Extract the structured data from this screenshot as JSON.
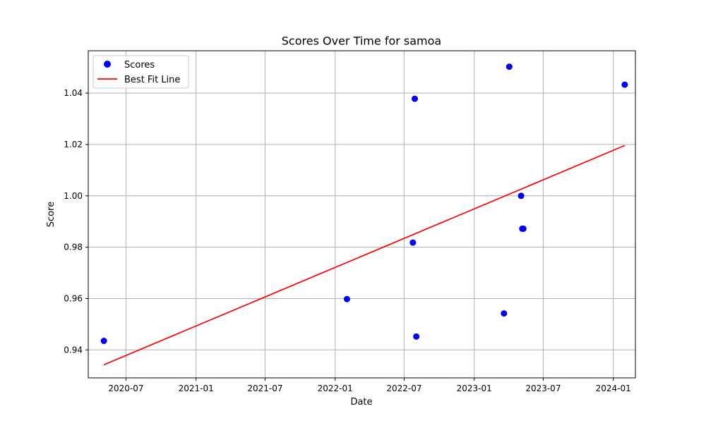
{
  "colors": {
    "scores": "#0000ff",
    "fit_line": "#ff0000",
    "grid": "#b0b0b0",
    "axis": "#000000",
    "background": "#ffffff"
  },
  "chart_data": {
    "type": "scatter",
    "title": "Scores Over Time for samoa",
    "xlabel": "Date",
    "ylabel": "Score",
    "grid": true,
    "legend_position": "top-left",
    "xlim": [
      "2020-03-24",
      "2024-02-28"
    ],
    "ylim": [
      0.9291,
      1.0565
    ],
    "x_ticks": [
      "2020-07-01",
      "2021-01-01",
      "2021-07-01",
      "2022-01-01",
      "2022-07-01",
      "2023-01-01",
      "2023-07-01",
      "2024-01-01"
    ],
    "x_tick_labels": [
      "2020-07",
      "2021-01",
      "2021-07",
      "2022-01",
      "2022-07",
      "2023-01",
      "2023-07",
      "2024-01"
    ],
    "y_ticks": [
      0.94,
      0.96,
      0.98,
      1.0,
      1.02,
      1.04
    ],
    "y_tick_labels": [
      "0.94",
      "0.96",
      "0.98",
      "1.00",
      "1.02",
      "1.04"
    ],
    "series": [
      {
        "name": "Scores",
        "kind": "scatter",
        "color": "#0000ff",
        "points": [
          {
            "x": "2020-05-04",
            "y": 0.9435
          },
          {
            "x": "2022-02-01",
            "y": 0.9598
          },
          {
            "x": "2022-07-24",
            "y": 0.9818
          },
          {
            "x": "2022-07-29",
            "y": 1.0378
          },
          {
            "x": "2022-08-02",
            "y": 0.9452
          },
          {
            "x": "2023-03-20",
            "y": 0.9542
          },
          {
            "x": "2023-04-03",
            "y": 1.0503
          },
          {
            "x": "2023-05-04",
            "y": 1.0
          },
          {
            "x": "2023-05-07",
            "y": 0.9872
          },
          {
            "x": "2023-05-10",
            "y": 0.9872
          },
          {
            "x": "2024-01-31",
            "y": 1.0433
          }
        ]
      },
      {
        "name": "Best Fit Line",
        "kind": "line",
        "color": "#ff0000",
        "points": [
          {
            "x": "2020-05-04",
            "y": 0.9342
          },
          {
            "x": "2024-01-31",
            "y": 1.0196
          }
        ]
      }
    ]
  }
}
